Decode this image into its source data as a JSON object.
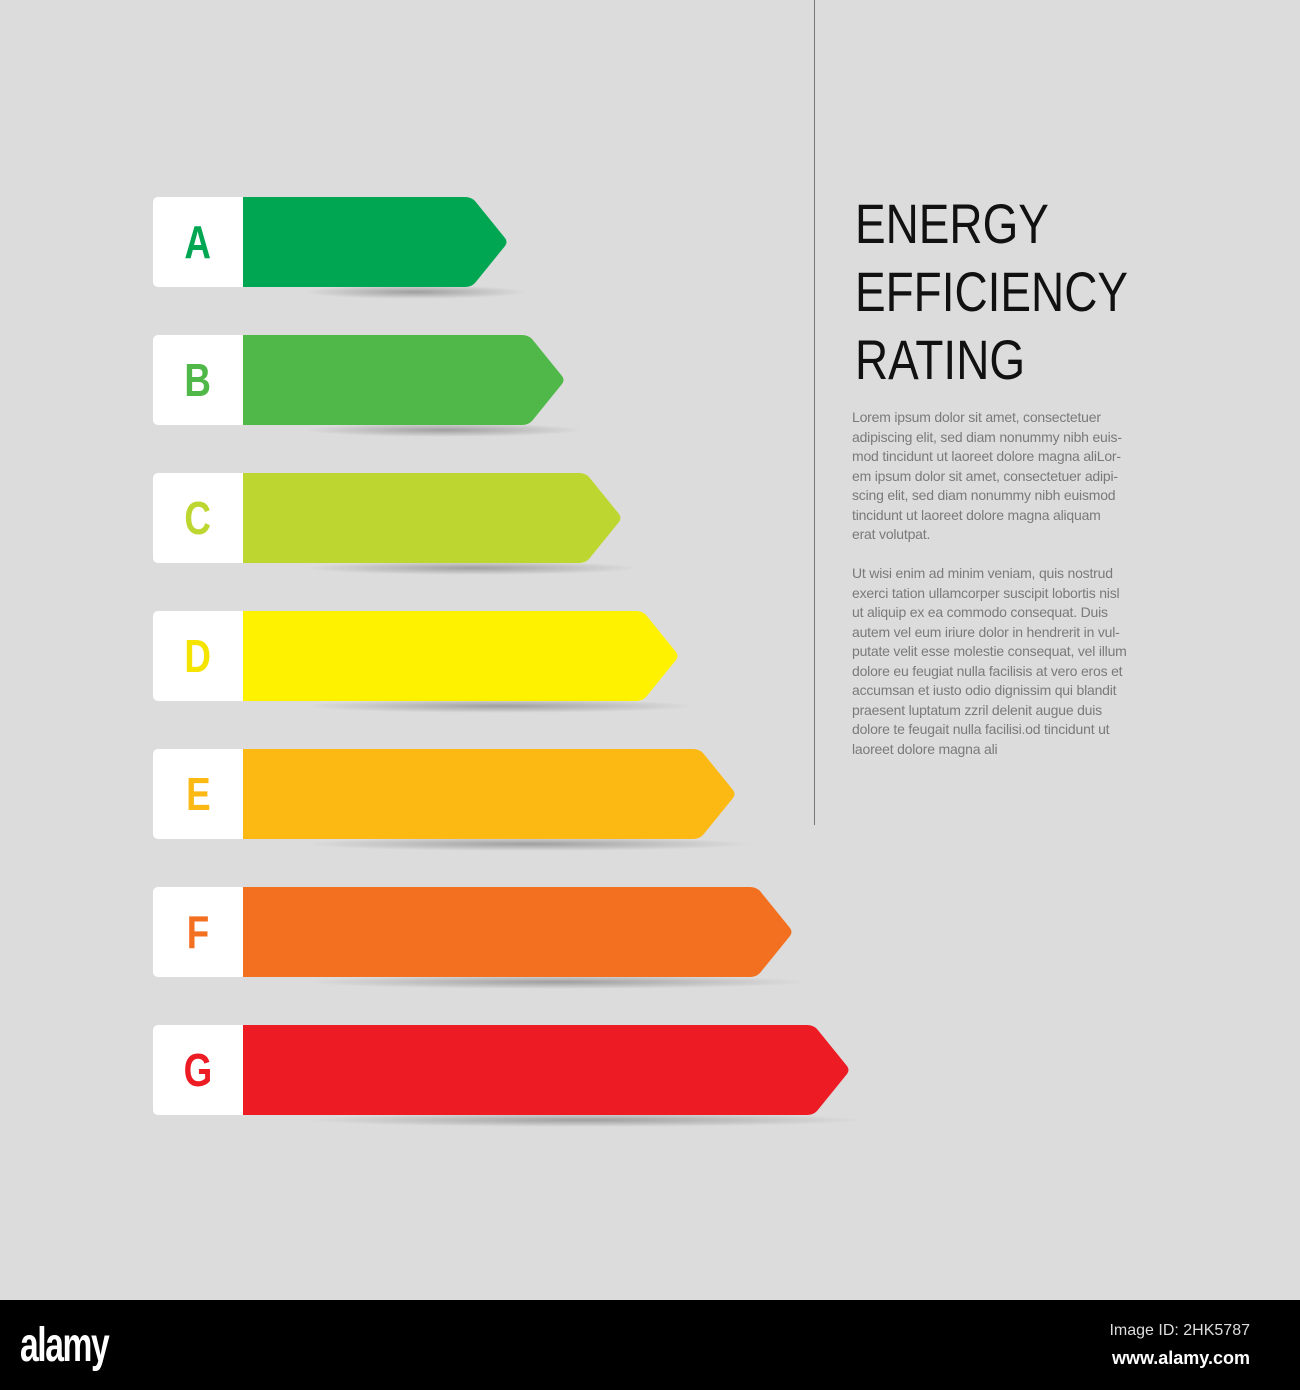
{
  "title": [
    "ENERGY",
    "EFFICIENCY",
    "RATING"
  ],
  "paragraphs": [
    "Lorem ipsum dolor sit amet, consectetuer\nadipiscing elit, sed diam nonummy nibh euis-\nmod tincidunt ut laoreet dolore magna aliLor-\nem ipsum dolor sit amet, consectetuer adipi-\nscing elit, sed diam nonummy nibh euismod\ntincidunt ut laoreet dolore magna aliquam\nerat volutpat.",
    "Ut wisi enim ad minim veniam, quis nostrud\nexerci tation ullamcorper suscipit lobortis nisl\nut aliquip ex ea commodo consequat. Duis\nautem vel eum iriure dolor in hendrerit in vul-\nputate velit esse molestie consequat, vel illum\ndolore eu feugiat nulla facilisis at vero eros et\naccumsan et iusto odio dignissim qui blandit\npraesent luptatum zzril delenit augue duis\ndolore te feugait nulla facilisi.od tincidunt ut\nlaoreet dolore magna ali"
  ],
  "ratings": [
    {
      "letter": "A",
      "color": "#00a651"
    },
    {
      "letter": "B",
      "color": "#50b848"
    },
    {
      "letter": "C",
      "color": "#bed630"
    },
    {
      "letter": "D",
      "color": "#fff200"
    },
    {
      "letter": "E",
      "color": "#fdb913"
    },
    {
      "letter": "F",
      "color": "#f37021"
    },
    {
      "letter": "G",
      "color": "#ed1c24"
    }
  ],
  "footer": {
    "logo": "alamy",
    "image_id": "Image ID: 2HK5787",
    "website": "www.alamy.com"
  }
}
